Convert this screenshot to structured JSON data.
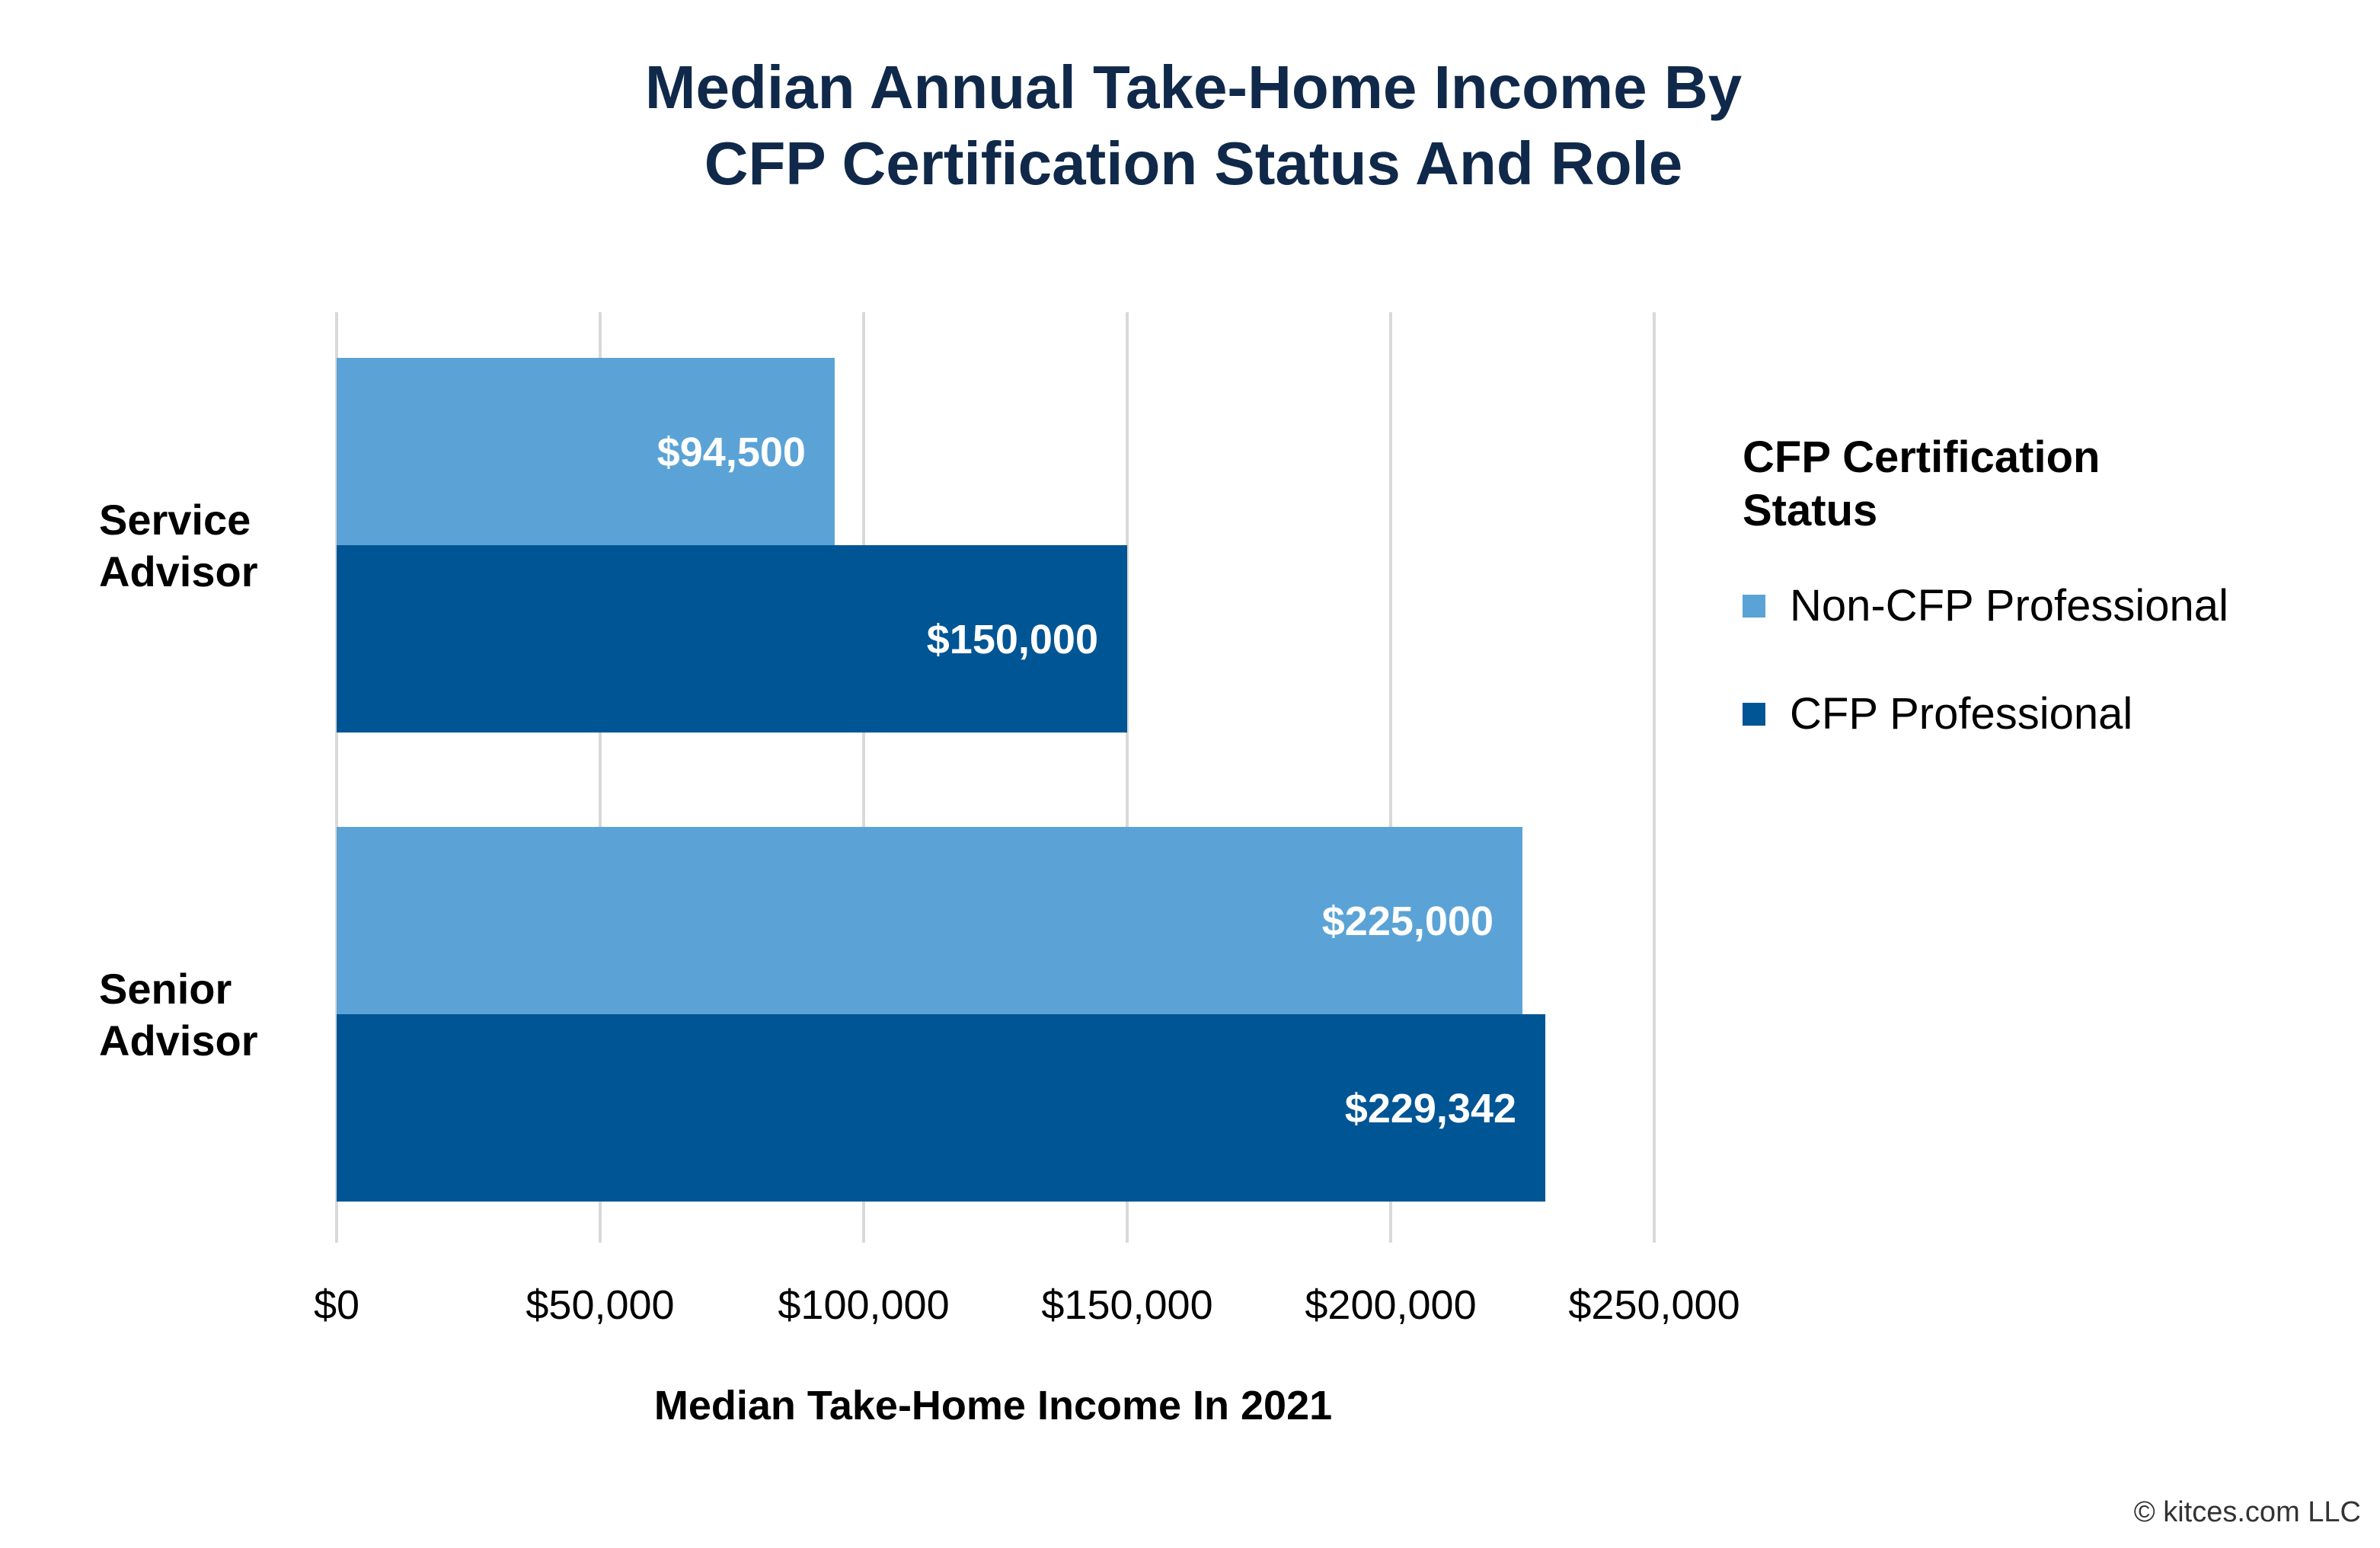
{
  "chart_data": {
    "type": "bar",
    "orientation": "horizontal",
    "title": [
      "Median Annual Take-Home Income By",
      "CFP Certification Status And Role"
    ],
    "categories": [
      {
        "id": "service-advisor",
        "label": [
          "Service",
          "Advisor"
        ]
      },
      {
        "id": "senior-advisor",
        "label": [
          "Senior",
          "Advisor"
        ]
      }
    ],
    "series": [
      {
        "name": "Non-CFP Professional",
        "color": "#5ba3d6",
        "values": [
          94500,
          225000
        ],
        "labels": [
          "$94,500",
          "$225,000"
        ]
      },
      {
        "name": "CFP Professional",
        "color": "#005594",
        "values": [
          150000,
          229342
        ],
        "labels": [
          "$150,000",
          "$229,342"
        ]
      }
    ],
    "xlim": [
      0,
      250000
    ],
    "xticks": [
      0,
      50000,
      100000,
      150000,
      200000,
      250000
    ],
    "xtick_labels": [
      "$0",
      "$50,000",
      "$100,000",
      "$150,000",
      "$200,000",
      "$250,000"
    ],
    "xlabel": "Median Take-Home Income In 2021",
    "ylabel": "",
    "grid": "vertical",
    "legend": {
      "title": [
        "CFP Certification",
        "Status"
      ],
      "placement": "right"
    }
  },
  "footer": {
    "copyright": "© kitces.com LLC"
  }
}
